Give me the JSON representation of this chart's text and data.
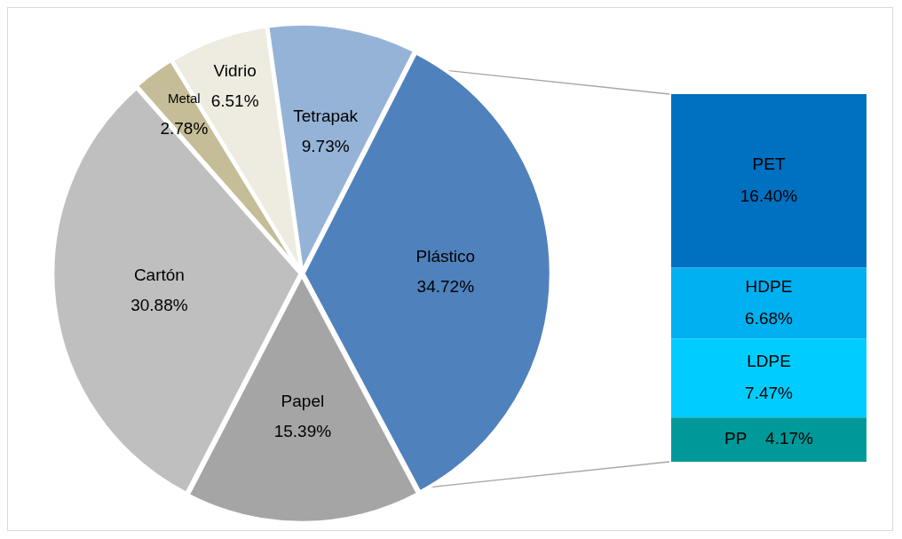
{
  "chart_data": [
    {
      "type": "pie",
      "categories": [
        "Plástico",
        "Papel",
        "Cartón",
        "Metal",
        "Vidrio",
        "Tetrapak"
      ],
      "values": [
        34.72,
        15.39,
        30.88,
        2.78,
        6.51,
        9.73
      ],
      "value_labels": [
        "34.72%",
        "15.39%",
        "30.88%",
        "2.78%",
        "6.51%",
        "9.73%"
      ],
      "colors": [
        "#4f81bd",
        "#a5a5a5",
        "#bfbfbf",
        "#c4bd97",
        "#eeece1",
        "#95b3d7"
      ],
      "legend": false
    },
    {
      "type": "bar",
      "stacked": true,
      "categories": [
        null
      ],
      "series": [
        {
          "name": "PP",
          "color": "#009999",
          "values": [
            4.17
          ],
          "value_labels": [
            "4.17%"
          ]
        },
        {
          "name": "LDPE",
          "color": "#00ccff",
          "values": [
            7.47
          ],
          "value_labels": [
            "7.47%"
          ]
        },
        {
          "name": "HDPE",
          "color": "#00b0f0",
          "values": [
            6.68
          ],
          "value_labels": [
            "6.68%"
          ]
        },
        {
          "name": "PET",
          "color": "#0070c0",
          "values": [
            16.4
          ],
          "value_labels": [
            "16.40%"
          ]
        }
      ],
      "legend": false,
      "tick_labels": false
    }
  ]
}
